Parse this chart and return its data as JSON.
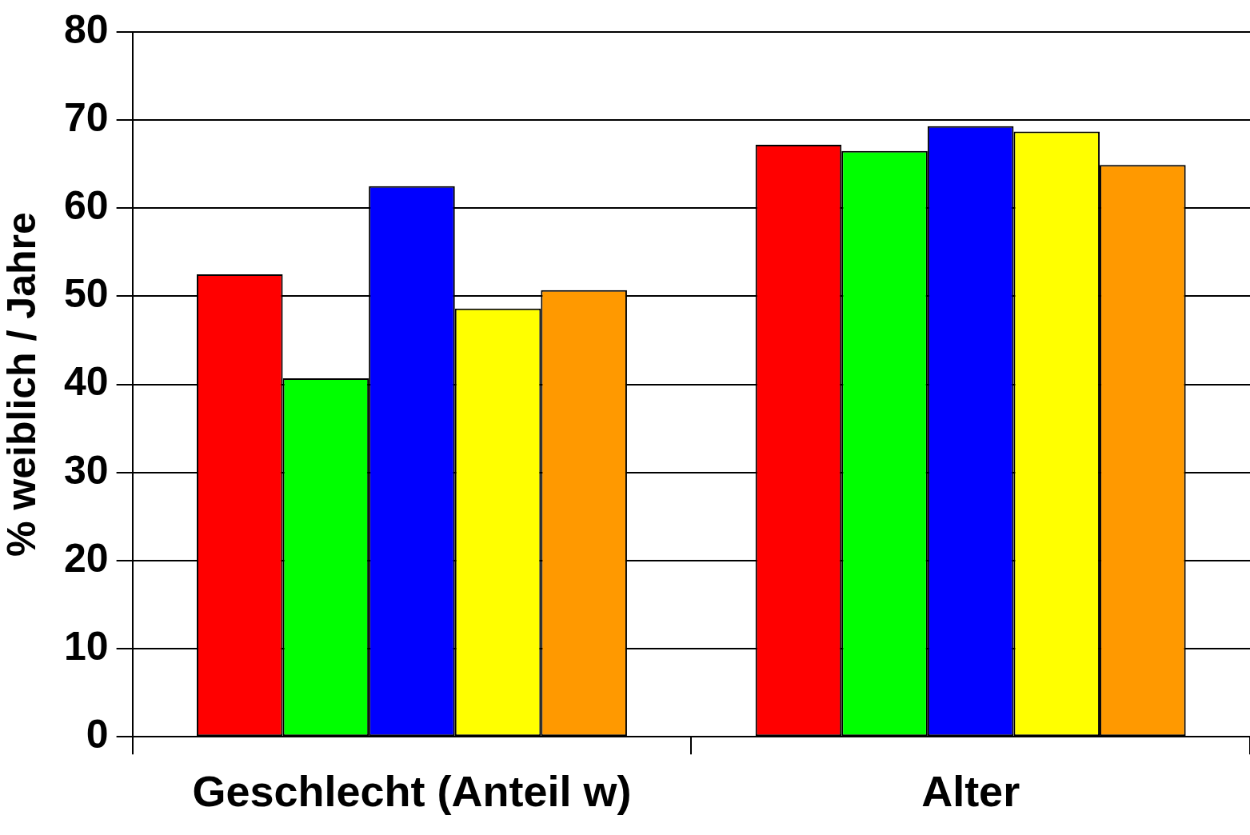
{
  "chart_data": {
    "type": "bar",
    "ylabel": "% weiblich / Jahre",
    "categories": [
      "Geschlecht (Anteil w)",
      "Alter"
    ],
    "series": [
      {
        "color": "#ff0000",
        "values": [
          52.5,
          67.2
        ]
      },
      {
        "color": "#00ff00",
        "values": [
          40.7,
          66.5
        ]
      },
      {
        "color": "#0000ff",
        "values": [
          62.5,
          69.3
        ]
      },
      {
        "color": "#ffff00",
        "values": [
          48.6,
          68.7
        ]
      },
      {
        "color": "#ff9900",
        "values": [
          50.7,
          64.9
        ]
      }
    ],
    "ylim": [
      0,
      80
    ],
    "yticks": [
      0,
      10,
      20,
      30,
      40,
      50,
      60,
      70,
      80
    ],
    "grid": "y",
    "legend": false
  }
}
